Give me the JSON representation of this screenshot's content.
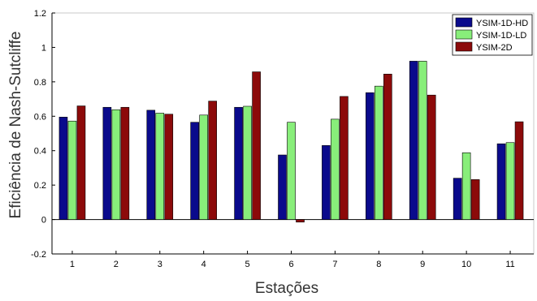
{
  "chart_data": {
    "type": "bar",
    "xlabel": "Estações",
    "ylabel": "Eficiência de Nash-Sutcliffe",
    "ylim": [
      -0.2,
      1.2
    ],
    "yticks": [
      -0.2,
      0,
      0.2,
      0.4,
      0.6,
      0.8,
      1,
      1.2
    ],
    "ytick_labels": [
      "-0.2",
      "0",
      "0.2",
      "0.4",
      "0.6",
      "0.8",
      "1",
      "1.2"
    ],
    "categories": [
      "1",
      "2",
      "3",
      "4",
      "5",
      "6",
      "7",
      "8",
      "9",
      "10",
      "11"
    ],
    "grid": false,
    "legend_position": "top-right",
    "series": [
      {
        "name": "YSIM-1D-HD",
        "color": "#0a0a8c",
        "values": [
          0.595,
          0.652,
          0.635,
          0.565,
          0.652,
          0.375,
          0.43,
          0.737,
          0.92,
          0.24,
          0.44
        ]
      },
      {
        "name": "YSIM-1D-LD",
        "color": "#88ee7a",
        "values": [
          0.572,
          0.638,
          0.618,
          0.607,
          0.658,
          0.565,
          0.583,
          0.775,
          0.92,
          0.388,
          0.447
        ]
      },
      {
        "name": "YSIM-2D",
        "color": "#8c0a0a",
        "values": [
          0.66,
          0.652,
          0.612,
          0.688,
          0.858,
          -0.015,
          0.715,
          0.845,
          0.723,
          0.232,
          0.568
        ]
      }
    ]
  }
}
